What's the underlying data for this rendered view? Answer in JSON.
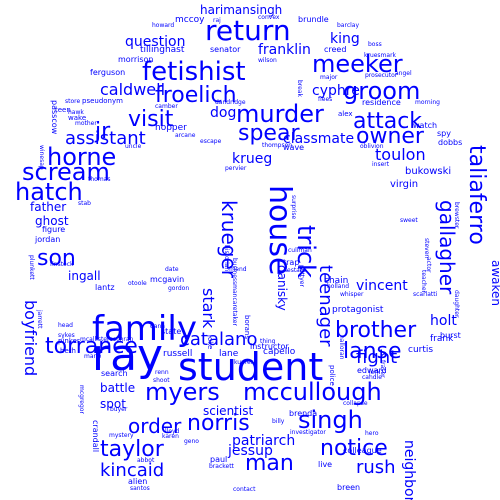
{
  "text_color": "#0000ff",
  "words": [
    {
      "text": "ray",
      "weight": 44
    },
    {
      "text": "student",
      "weight": 38
    },
    {
      "text": "family",
      "weight": 34
    },
    {
      "text": "return",
      "weight": 28
    },
    {
      "text": "house",
      "weight": 30
    },
    {
      "text": "fetishist",
      "weight": 26
    },
    {
      "text": "murder",
      "weight": 24
    },
    {
      "text": "meeker",
      "weight": 24
    },
    {
      "text": "groom",
      "weight": 24
    },
    {
      "text": "froelich",
      "weight": 22
    },
    {
      "text": "jr",
      "weight": 22
    },
    {
      "text": "visit",
      "weight": 22
    },
    {
      "text": "spear",
      "weight": 22
    },
    {
      "text": "horne",
      "weight": 24
    },
    {
      "text": "attack",
      "weight": 22
    },
    {
      "text": "owner",
      "weight": 22
    },
    {
      "text": "scream",
      "weight": 24
    },
    {
      "text": "hatch",
      "weight": 24
    },
    {
      "text": "son",
      "weight": 22
    },
    {
      "text": "krueger",
      "weight": 20
    },
    {
      "text": "trick",
      "weight": 24
    },
    {
      "text": "taliaferro",
      "weight": 22
    },
    {
      "text": "gallagher",
      "weight": 20
    },
    {
      "text": "torrance",
      "weight": 22
    },
    {
      "text": "myers",
      "weight": 24
    },
    {
      "text": "mccullough",
      "weight": 24
    },
    {
      "text": "lanse",
      "weight": 22
    },
    {
      "text": "brother",
      "weight": 22
    },
    {
      "text": "norris",
      "weight": 22
    },
    {
      "text": "singh",
      "weight": 24
    },
    {
      "text": "notice",
      "weight": 22
    },
    {
      "text": "taylor",
      "weight": 22
    },
    {
      "text": "order",
      "weight": 20
    },
    {
      "text": "man",
      "weight": 22
    },
    {
      "text": "kincaid",
      "weight": 18
    },
    {
      "text": "rush",
      "weight": 18
    },
    {
      "text": "fight",
      "weight": 18
    },
    {
      "text": "teenager",
      "weight": 18
    },
    {
      "text": "catalano",
      "weight": 18
    },
    {
      "text": "stark",
      "weight": 16
    },
    {
      "text": "assistant",
      "weight": 18
    },
    {
      "text": "caldwell",
      "weight": 16
    },
    {
      "text": "question",
      "weight": 14
    },
    {
      "text": "franklin",
      "weight": 14
    },
    {
      "text": "king",
      "weight": 14
    },
    {
      "text": "cyphre",
      "weight": 14
    },
    {
      "text": "dog",
      "weight": 14
    },
    {
      "text": "classmate",
      "weight": 14
    },
    {
      "text": "toulon",
      "weight": 16
    },
    {
      "text": "krueg",
      "weight": 14
    },
    {
      "text": "boyfriend",
      "weight": 16
    },
    {
      "text": "vincent",
      "weight": 14
    },
    {
      "text": "holt",
      "weight": 14
    },
    {
      "text": "danisky",
      "weight": 12
    },
    {
      "text": "patriarch",
      "weight": 14
    },
    {
      "text": "jessup",
      "weight": 14
    },
    {
      "text": "neighbor",
      "weight": 14
    },
    {
      "text": "awaken",
      "weight": 12
    },
    {
      "text": "harimansingh",
      "weight": 12
    },
    {
      "text": "ghost",
      "weight": 12
    },
    {
      "text": "father",
      "weight": 12
    },
    {
      "text": "ingall",
      "weight": 12
    },
    {
      "text": "battle",
      "weight": 12
    },
    {
      "text": "spot",
      "weight": 12
    },
    {
      "text": "scientist",
      "weight": 12
    },
    {
      "text": "bukowski",
      "weight": 10
    },
    {
      "text": "virgin",
      "weight": 10
    },
    {
      "text": "mccoy",
      "weight": 9
    },
    {
      "text": "tillinghast",
      "weight": 9
    },
    {
      "text": "morrison",
      "weight": 8
    },
    {
      "text": "ferguson",
      "weight": 8
    },
    {
      "text": "passcow",
      "weight": 8
    },
    {
      "text": "pseudonym",
      "weight": 7
    },
    {
      "text": "hopper",
      "weight": 9
    },
    {
      "text": "senator",
      "weight": 8
    },
    {
      "text": "brundle",
      "weight": 8
    },
    {
      "text": "creed",
      "weight": 8
    },
    {
      "text": "residence",
      "weight": 8
    },
    {
      "text": "watch",
      "weight": 8
    },
    {
      "text": "spy",
      "weight": 8
    },
    {
      "text": "dobbs",
      "weight": 8
    },
    {
      "text": "burst",
      "weight": 8
    },
    {
      "text": "frank",
      "weight": 9
    },
    {
      "text": "curtis",
      "weight": 9
    },
    {
      "text": "protagonist",
      "weight": 9
    },
    {
      "text": "instructor",
      "weight": 8
    },
    {
      "text": "capello",
      "weight": 9
    },
    {
      "text": "russell",
      "weight": 9
    },
    {
      "text": "lane",
      "weight": 9
    },
    {
      "text": "state",
      "weight": 8
    },
    {
      "text": "pinker",
      "weight": 7
    },
    {
      "text": "beth",
      "weight": 7
    },
    {
      "text": "mcgavin",
      "weight": 8
    },
    {
      "text": "lantz",
      "weight": 8
    },
    {
      "text": "jordan",
      "weight": 8
    },
    {
      "text": "figure",
      "weight": 8
    },
    {
      "text": "search",
      "weight": 8
    },
    {
      "text": "brenda",
      "weight": 8
    },
    {
      "text": "edward",
      "weight": 8
    },
    {
      "text": "chain",
      "weight": 9
    },
    {
      "text": "police",
      "weight": 7
    },
    {
      "text": "trap",
      "weight": 8
    },
    {
      "text": "colleague",
      "weight": 8
    },
    {
      "text": "live",
      "weight": 8
    },
    {
      "text": "breen",
      "weight": 8
    },
    {
      "text": "paul",
      "weight": 8
    },
    {
      "text": "crandall",
      "weight": 8
    },
    {
      "text": "alien",
      "weight": 8
    },
    {
      "text": "mystery",
      "weight": 6
    },
    {
      "text": "wave",
      "weight": 8
    },
    {
      "text": "escape",
      "weight": 6
    },
    {
      "text": "alex",
      "weight": 7
    },
    {
      "text": "wake",
      "weight": 7
    },
    {
      "text": "teen",
      "weight": 7
    },
    {
      "text": "store",
      "weight": 6
    },
    {
      "text": "joke",
      "weight": 7
    },
    {
      "text": "borans",
      "weight": 7
    }
  ],
  "small_words": [
    "howard",
    "raj",
    "convex",
    "barclay",
    "boss",
    "kruesmark",
    "wilson",
    "break",
    "major",
    "angel",
    "prosecutor",
    "camber",
    "dandridge",
    "flees",
    "morning",
    "arcane",
    "thompson",
    "oblivion",
    "insert",
    "uncle",
    "mother",
    "hawk",
    "winesap",
    "thomas",
    "stab",
    "plunkett",
    "finstock",
    "jarrett",
    "head",
    "sykes",
    "mario",
    "mcallistercochran",
    "otoole",
    "date",
    "gordon",
    "friend",
    "estate",
    "pervier",
    "surprise",
    "historian",
    "businessmancaretaker",
    "dana",
    "renn",
    "shoot",
    "kupfer",
    "thing",
    "halloran",
    "jerk",
    "candle",
    "fraser",
    "whisper",
    "scarlatti",
    "holland",
    "teacher",
    "daughter",
    "sweet",
    "steven",
    "brewster",
    "actor",
    "abbot",
    "lloyd",
    "buyer",
    "santos",
    "karen",
    "geno",
    "contact",
    "brackett",
    "investigator",
    "hero",
    "billy",
    "collapse",
    "cullman",
    "pettyer",
    "mcgregor"
  ]
}
